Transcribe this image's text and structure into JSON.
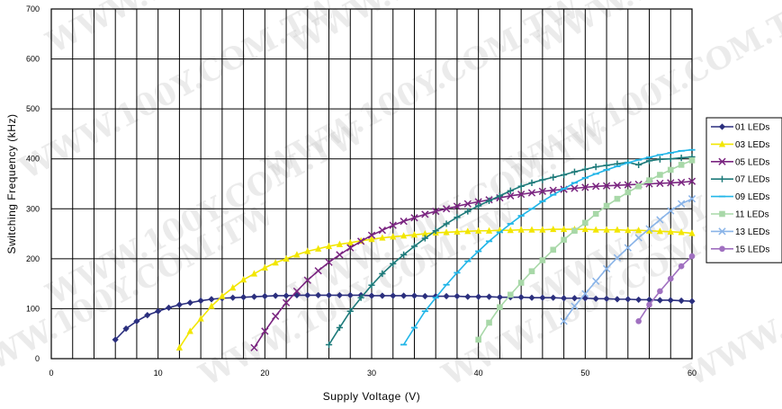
{
  "chart_data": {
    "type": "line",
    "title": "",
    "xlabel": "Supply Voltage (V)",
    "ylabel": "Switching Frequency (kHz)",
    "xlim": [
      0,
      60
    ],
    "ylim": [
      0,
      700
    ],
    "x_ticks": [
      0,
      10,
      20,
      30,
      40,
      50,
      60
    ],
    "y_ticks": [
      0,
      100,
      200,
      300,
      400,
      500,
      600,
      700
    ],
    "grid": true,
    "legend_position": "right",
    "watermark_text": "WWW.100Y.COM.TW",
    "series": [
      {
        "name": "01 LEDs",
        "color": "#2b2f7e",
        "marker": "diamond",
        "x": [
          6,
          7,
          8,
          9,
          10,
          11,
          12,
          13,
          14,
          15,
          16,
          17,
          18,
          19,
          20,
          21,
          22,
          23,
          24,
          25,
          26,
          27,
          28,
          29,
          30,
          31,
          32,
          33,
          34,
          35,
          36,
          37,
          38,
          39,
          40,
          41,
          42,
          43,
          44,
          45,
          46,
          47,
          48,
          49,
          50,
          51,
          52,
          53,
          54,
          55,
          56,
          57,
          58,
          59,
          60
        ],
        "y": [
          38,
          60,
          75,
          87,
          95,
          102,
          108,
          112,
          116,
          119,
          121,
          122,
          123,
          124,
          125,
          126,
          126,
          127,
          127,
          127,
          127,
          127,
          127,
          127,
          126,
          126,
          126,
          126,
          126,
          125,
          125,
          125,
          125,
          124,
          124,
          124,
          123,
          123,
          123,
          122,
          122,
          122,
          121,
          121,
          121,
          120,
          120,
          119,
          119,
          118,
          118,
          117,
          117,
          116,
          115
        ]
      },
      {
        "name": "03 LEDs",
        "color": "#f2e600",
        "marker": "triangle",
        "x": [
          12,
          13,
          14,
          15,
          16,
          17,
          18,
          19,
          20,
          21,
          22,
          23,
          24,
          25,
          26,
          27,
          28,
          29,
          30,
          31,
          32,
          33,
          34,
          35,
          36,
          37,
          38,
          39,
          40,
          41,
          42,
          43,
          44,
          45,
          46,
          47,
          48,
          49,
          50,
          51,
          52,
          53,
          54,
          55,
          56,
          57,
          58,
          59,
          60
        ],
        "y": [
          22,
          55,
          80,
          105,
          125,
          142,
          158,
          170,
          182,
          192,
          200,
          208,
          215,
          220,
          225,
          229,
          232,
          236,
          239,
          242,
          244,
          246,
          248,
          250,
          252,
          253,
          254,
          255,
          256,
          256,
          257,
          257,
          258,
          258,
          258,
          259,
          259,
          259,
          259,
          258,
          258,
          258,
          257,
          257,
          256,
          255,
          254,
          253,
          251
        ]
      },
      {
        "name": "05 LEDs",
        "color": "#7a2580",
        "marker": "x",
        "x": [
          19,
          20,
          21,
          22,
          23,
          24,
          25,
          26,
          27,
          28,
          29,
          30,
          31,
          32,
          33,
          34,
          35,
          36,
          37,
          38,
          39,
          40,
          41,
          42,
          43,
          44,
          45,
          46,
          47,
          48,
          49,
          50,
          51,
          52,
          53,
          54,
          55,
          56,
          57,
          58,
          59,
          60
        ],
        "y": [
          22,
          55,
          85,
          112,
          135,
          157,
          176,
          193,
          208,
          222,
          235,
          247,
          257,
          267,
          275,
          282,
          289,
          295,
          300,
          305,
          310,
          314,
          318,
          322,
          326,
          329,
          332,
          335,
          337,
          339,
          341,
          343,
          345,
          346,
          347,
          348,
          349,
          350,
          351,
          352,
          353,
          355
        ]
      },
      {
        "name": "07 LEDs",
        "color": "#1d7a7a",
        "marker": "plus",
        "x": [
          26,
          27,
          28,
          29,
          30,
          31,
          32,
          33,
          34,
          35,
          36,
          37,
          38,
          39,
          40,
          41,
          42,
          43,
          44,
          45,
          46,
          47,
          48,
          49,
          50,
          51,
          52,
          53,
          54,
          55,
          56,
          57,
          58,
          59,
          60
        ],
        "y": [
          28,
          62,
          95,
          122,
          147,
          170,
          190,
          208,
          225,
          241,
          256,
          270,
          283,
          295,
          306,
          316,
          326,
          336,
          345,
          352,
          358,
          363,
          368,
          374,
          379,
          384,
          387,
          390,
          393,
          388,
          396,
          399,
          400,
          402,
          404
        ]
      },
      {
        "name": "09 LEDs",
        "color": "#22b6e8",
        "marker": "dash",
        "x": [
          33,
          34,
          35,
          36,
          37,
          38,
          39,
          40,
          41,
          42,
          43,
          44,
          45,
          46,
          47,
          48,
          49,
          50,
          51,
          52,
          53,
          54,
          55,
          56,
          57,
          58,
          59,
          60
        ],
        "y": [
          28,
          62,
          95,
          122,
          148,
          172,
          195,
          215,
          235,
          253,
          270,
          286,
          300,
          315,
          328,
          340,
          352,
          362,
          370,
          378,
          385,
          392,
          398,
          403,
          408,
          412,
          416,
          418
        ]
      },
      {
        "name": "11 LEDs",
        "color": "#a8d8a8",
        "marker": "square",
        "x": [
          40,
          41,
          42,
          43,
          44,
          45,
          46,
          47,
          48,
          49,
          50,
          51,
          52,
          53,
          54,
          55,
          56,
          57,
          58,
          59,
          60
        ],
        "y": [
          38,
          72,
          103,
          128,
          152,
          175,
          197,
          218,
          238,
          256,
          272,
          290,
          306,
          320,
          333,
          345,
          357,
          368,
          378,
          388,
          397
        ]
      },
      {
        "name": "13 LEDs",
        "color": "#8ab4e8",
        "marker": "x",
        "x": [
          48,
          49,
          50,
          51,
          52,
          53,
          54,
          55,
          56,
          57,
          58,
          59,
          60
        ],
        "y": [
          75,
          105,
          130,
          155,
          180,
          202,
          222,
          242,
          260,
          278,
          296,
          310,
          320
        ]
      },
      {
        "name": "15 LEDs",
        "color": "#a070c0",
        "marker": "circle",
        "x": [
          55,
          56,
          57,
          58,
          59,
          60
        ],
        "y": [
          75,
          108,
          135,
          160,
          185,
          205
        ]
      }
    ]
  }
}
